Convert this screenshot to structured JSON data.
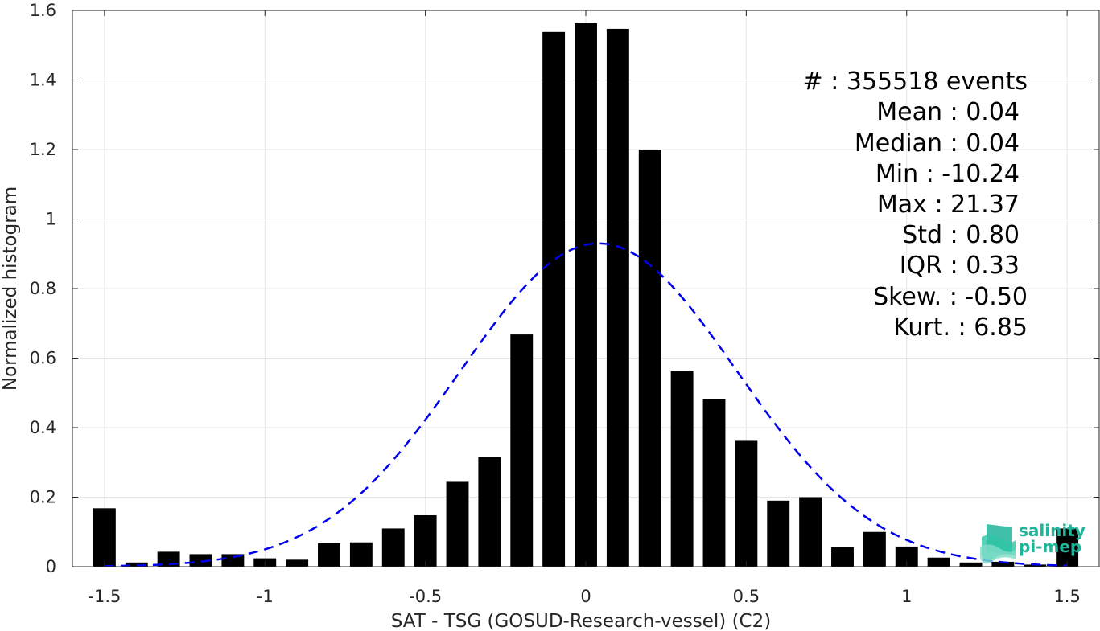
{
  "chart_data": {
    "type": "bar",
    "xlabel": "SAT - TSG (GOSUD-Research-vessel) (C2)",
    "ylabel": "Normalized histogram",
    "xlim": [
      -1.6,
      1.6
    ],
    "ylim": [
      0,
      1.6
    ],
    "x_ticks": [
      -1.5,
      -1,
      -0.5,
      0,
      0.5,
      1,
      1.5
    ],
    "x_tick_labels": [
      "-1.5",
      "-1",
      "-0.5",
      "0",
      "0.5",
      "1",
      "1.5"
    ],
    "y_ticks": [
      0,
      0.2,
      0.4,
      0.6,
      0.8,
      1,
      1.2,
      1.4,
      1.6
    ],
    "y_tick_labels": [
      "0",
      "0.2",
      "0.4",
      "0.6",
      "0.8",
      "1",
      "1.2",
      "1.4",
      "1.6"
    ],
    "grid": true,
    "bar_width": 0.07,
    "bins": [
      -1.5,
      -1.4,
      -1.3,
      -1.2,
      -1.1,
      -1.0,
      -0.9,
      -0.8,
      -0.7,
      -0.6,
      -0.5,
      -0.4,
      -0.3,
      -0.2,
      -0.1,
      0.0,
      0.1,
      0.2,
      0.3,
      0.4,
      0.5,
      0.6,
      0.7,
      0.8,
      0.9,
      1.0,
      1.1,
      1.2,
      1.3,
      1.4,
      1.5
    ],
    "values": [
      0.168,
      0.012,
      0.043,
      0.036,
      0.036,
      0.024,
      0.02,
      0.068,
      0.07,
      0.11,
      0.148,
      0.244,
      0.316,
      0.668,
      1.538,
      1.563,
      1.547,
      1.2,
      0.562,
      0.482,
      0.362,
      0.19,
      0.2,
      0.056,
      0.1,
      0.058,
      0.026,
      0.012,
      0.014,
      0.006,
      0.11
    ],
    "bar_color": "#000000",
    "fit_curve": {
      "style": "dashed",
      "color": "#0000ee",
      "mean": 0.04,
      "std": 0.43,
      "peak": 0.93
    },
    "stats": {
      "events": "#  : 355518 events",
      "mean": "Mean : 0.04",
      "median": "Median : 0.04",
      "min": "Min : -10.24",
      "max": "Max : 21.37",
      "std": "Std : 0.80",
      "iqr": "IQR : 0.33",
      "skew": "Skew. : -0.50",
      "kurt": "Kurt. : 6.85"
    }
  },
  "logo": {
    "line1": "salinity",
    "line2": "pi-mep",
    "color": "#1fb59a"
  }
}
